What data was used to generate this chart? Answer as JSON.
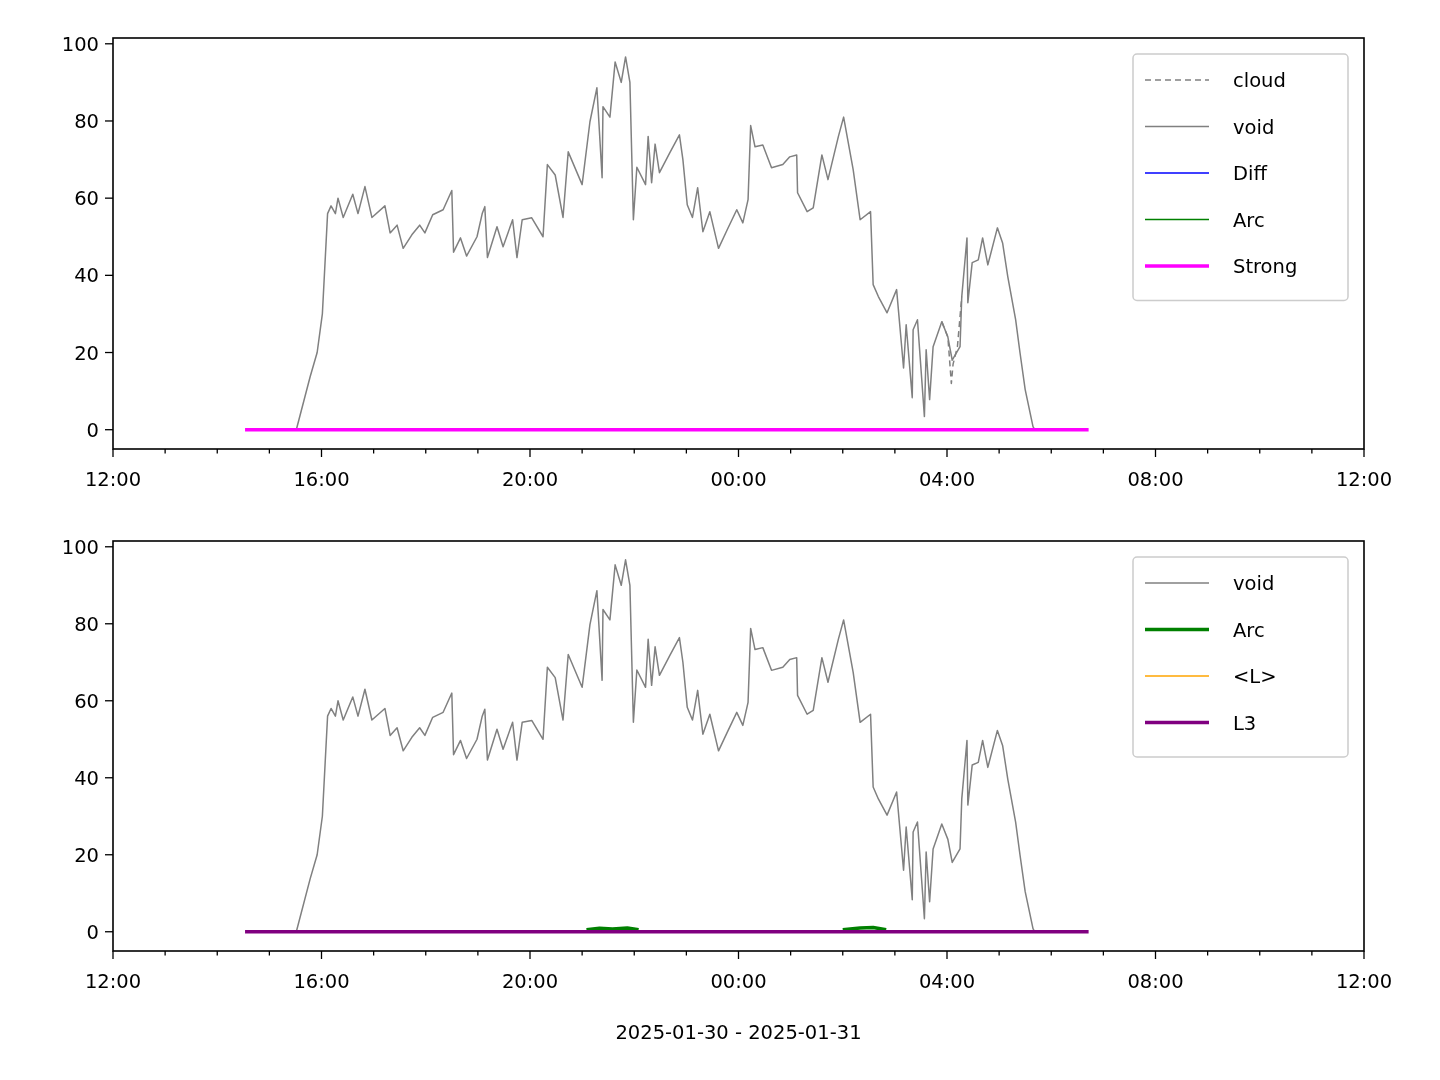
{
  "chart_data": [
    {
      "type": "line",
      "xlim": [
        "2025-01-30T12:00",
        "2025-01-31T12:00"
      ],
      "ylim": [
        -5,
        101.5
      ],
      "xticks": [
        {
          "value": "2025-01-30T12:00",
          "label": "12:00"
        },
        {
          "value": "2025-01-30T13:00",
          "label": null
        },
        {
          "value": "2025-01-30T14:00",
          "label": null
        },
        {
          "value": "2025-01-30T15:00",
          "label": null
        },
        {
          "value": "2025-01-30T16:00",
          "label": "16:00"
        },
        {
          "value": "2025-01-30T17:00",
          "label": null
        },
        {
          "value": "2025-01-30T18:00",
          "label": null
        },
        {
          "value": "2025-01-30T19:00",
          "label": null
        },
        {
          "value": "2025-01-30T20:00",
          "label": "20:00"
        },
        {
          "value": "2025-01-30T21:00",
          "label": null
        },
        {
          "value": "2025-01-30T22:00",
          "label": null
        },
        {
          "value": "2025-01-30T23:00",
          "label": null
        },
        {
          "value": "2025-01-31T00:00",
          "label": "00:00"
        },
        {
          "value": "2025-01-31T01:00",
          "label": null
        },
        {
          "value": "2025-01-31T02:00",
          "label": null
        },
        {
          "value": "2025-01-31T03:00",
          "label": null
        },
        {
          "value": "2025-01-31T04:00",
          "label": "04:00"
        },
        {
          "value": "2025-01-31T05:00",
          "label": null
        },
        {
          "value": "2025-01-31T06:00",
          "label": null
        },
        {
          "value": "2025-01-31T07:00",
          "label": null
        },
        {
          "value": "2025-01-31T08:00",
          "label": "08:00"
        },
        {
          "value": "2025-01-31T09:00",
          "label": null
        },
        {
          "value": "2025-01-31T10:00",
          "label": null
        },
        {
          "value": "2025-01-31T11:00",
          "label": null
        },
        {
          "value": "2025-01-31T12:00",
          "label": "12:00"
        }
      ],
      "yticks": [
        0,
        20,
        40,
        60,
        80,
        100
      ],
      "legend": "top right",
      "series": [
        {
          "name": "cloud",
          "color": "#808080",
          "line_style": "dashed",
          "x": [
            "2025-01-31T03:54",
            "2025-01-31T04:01",
            "2025-01-31T04:05",
            "2025-01-31T04:07",
            "2025-01-31T04:12",
            "2025-01-31T04:17"
          ],
          "values": [
            28,
            24,
            12,
            17,
            21.5,
            34.5
          ]
        },
        {
          "name": "void",
          "color": "#808080",
          "x": [
            "2025-01-30T15:31",
            "2025-01-30T15:47",
            "2025-01-30T15:55",
            "2025-01-30T16:01",
            "2025-01-30T16:07",
            "2025-01-30T16:11",
            "2025-01-30T16:16",
            "2025-01-30T16:19",
            "2025-01-30T16:25",
            "2025-01-30T16:36",
            "2025-01-30T16:42",
            "2025-01-30T16:50",
            "2025-01-30T16:58",
            "2025-01-30T17:13",
            "2025-01-30T17:19",
            "2025-01-30T17:27",
            "2025-01-30T17:34",
            "2025-01-30T17:44",
            "2025-01-30T17:53",
            "2025-01-30T17:59",
            "2025-01-30T18:08",
            "2025-01-30T18:20",
            "2025-01-30T18:30",
            "2025-01-30T18:32",
            "2025-01-30T18:40",
            "2025-01-30T18:47",
            "2025-01-30T18:59",
            "2025-01-30T19:05",
            "2025-01-30T19:08",
            "2025-01-30T19:11",
            "2025-01-30T19:22",
            "2025-01-30T19:29",
            "2025-01-30T19:40",
            "2025-01-30T19:45",
            "2025-01-30T19:51",
            "2025-01-30T20:02",
            "2025-01-30T20:15",
            "2025-01-30T20:20",
            "2025-01-30T20:29",
            "2025-01-30T20:38",
            "2025-01-30T20:44",
            "2025-01-30T21:00",
            "2025-01-30T21:09",
            "2025-01-30T21:17",
            "2025-01-30T21:23",
            "2025-01-30T21:24",
            "2025-01-30T21:32",
            "2025-01-30T21:38",
            "2025-01-30T21:45",
            "2025-01-30T21:50",
            "2025-01-30T21:55",
            "2025-01-30T21:59",
            "2025-01-30T22:03",
            "2025-01-30T22:13",
            "2025-01-30T22:16",
            "2025-01-30T22:20",
            "2025-01-30T22:24",
            "2025-01-30T22:29",
            "2025-01-30T22:41",
            "2025-01-30T22:52",
            "2025-01-30T22:56",
            "2025-01-30T23:01",
            "2025-01-30T23:07",
            "2025-01-30T23:13",
            "2025-01-30T23:19",
            "2025-01-30T23:27",
            "2025-01-30T23:37",
            "2025-01-30T23:47",
            "2025-01-30T23:58",
            "2025-01-31T00:05",
            "2025-01-31T00:11",
            "2025-01-31T00:14",
            "2025-01-31T00:19",
            "2025-01-31T00:28",
            "2025-01-31T00:38",
            "2025-01-31T00:51",
            "2025-01-31T00:59",
            "2025-01-31T01:07",
            "2025-01-31T01:08",
            "2025-01-31T01:19",
            "2025-01-31T01:26",
            "2025-01-31T01:36",
            "2025-01-31T01:43",
            "2025-01-31T01:55",
            "2025-01-31T02:01",
            "2025-01-31T02:12",
            "2025-01-31T02:20",
            "2025-01-31T02:32",
            "2025-01-31T02:35",
            "2025-01-31T02:41",
            "2025-01-31T02:51",
            "2025-01-31T03:02",
            "2025-01-31T03:10",
            "2025-01-31T03:13",
            "2025-01-31T03:20",
            "2025-01-31T03:21",
            "2025-01-31T03:26",
            "2025-01-31T03:34",
            "2025-01-31T03:36",
            "2025-01-31T03:40",
            "2025-01-31T03:44",
            "2025-01-31T03:54",
            "2025-01-31T04:01",
            "2025-01-31T04:06",
            "2025-01-31T04:15",
            "2025-01-31T04:17",
            "2025-01-31T04:23",
            "2025-01-31T04:24",
            "2025-01-31T04:29",
            "2025-01-31T04:36",
            "2025-01-31T04:41",
            "2025-01-31T04:47",
            "2025-01-31T04:58",
            "2025-01-31T05:04",
            "2025-01-31T05:10",
            "2025-01-31T05:19",
            "2025-01-31T05:24",
            "2025-01-31T05:30",
            "2025-01-31T05:39",
            "2025-01-31T05:41"
          ],
          "values": [
            0,
            13.8,
            20,
            30,
            56,
            58,
            56,
            60,
            55,
            61,
            56,
            63,
            55,
            58,
            51,
            53,
            47,
            50.5,
            53,
            51,
            55.7,
            57,
            62,
            46,
            49.7,
            45,
            50,
            56,
            57.8,
            44.6,
            52.6,
            47.4,
            54.4,
            44.6,
            54.4,
            54.9,
            50,
            68.7,
            66,
            55,
            72,
            63.5,
            79.8,
            88.6,
            65.3,
            83.7,
            81,
            95.3,
            90,
            96.6,
            90,
            54.4,
            68,
            63.5,
            76,
            64,
            74,
            66.6,
            71.8,
            76.4,
            70,
            58.3,
            55,
            62.7,
            51.3,
            56.5,
            47,
            51.8,
            57,
            53.6,
            59.6,
            78.8,
            73.3,
            73.8,
            67.9,
            68.7,
            70.7,
            71.2,
            61.4,
            56.5,
            57.5,
            71.2,
            64.8,
            76,
            81,
            67.4,
            54.4,
            56.5,
            37.6,
            34.5,
            30.3,
            36.3,
            16,
            27.2,
            8.3,
            25.9,
            28.5,
            3.4,
            20.7,
            7.8,
            21.5,
            28,
            24,
            18,
            21.5,
            34.5,
            49.7,
            32.9,
            43.3,
            44,
            49.7,
            42.7,
            52.3,
            48.4,
            39.6,
            28.5,
            20,
            10.4,
            0.8,
            0
          ]
        },
        {
          "name": "Diff",
          "color": "#0000ff"
        },
        {
          "name": "Arc",
          "color": "#008000"
        },
        {
          "name": "Strong",
          "color": "#ff00ff",
          "x": [
            "2025-01-30T14:32",
            "2025-01-31T06:43"
          ],
          "values": [
            0,
            0
          ]
        }
      ]
    },
    {
      "type": "line",
      "xlabel": "2025-01-30 - 2025-01-31",
      "xlim": [
        "2025-01-30T12:00",
        "2025-01-31T12:00"
      ],
      "ylim": [
        -5,
        101.5
      ],
      "xticks": [
        {
          "value": "2025-01-30T12:00",
          "label": "12:00"
        },
        {
          "value": "2025-01-30T13:00",
          "label": null
        },
        {
          "value": "2025-01-30T14:00",
          "label": null
        },
        {
          "value": "2025-01-30T15:00",
          "label": null
        },
        {
          "value": "2025-01-30T16:00",
          "label": "16:00"
        },
        {
          "value": "2025-01-30T17:00",
          "label": null
        },
        {
          "value": "2025-01-30T18:00",
          "label": null
        },
        {
          "value": "2025-01-30T19:00",
          "label": null
        },
        {
          "value": "2025-01-30T20:00",
          "label": "20:00"
        },
        {
          "value": "2025-01-30T21:00",
          "label": null
        },
        {
          "value": "2025-01-30T22:00",
          "label": null
        },
        {
          "value": "2025-01-30T23:00",
          "label": null
        },
        {
          "value": "2025-01-31T00:00",
          "label": "00:00"
        },
        {
          "value": "2025-01-31T01:00",
          "label": null
        },
        {
          "value": "2025-01-31T02:00",
          "label": null
        },
        {
          "value": "2025-01-31T03:00",
          "label": null
        },
        {
          "value": "2025-01-31T04:00",
          "label": "04:00"
        },
        {
          "value": "2025-01-31T05:00",
          "label": null
        },
        {
          "value": "2025-01-31T06:00",
          "label": null
        },
        {
          "value": "2025-01-31T07:00",
          "label": null
        },
        {
          "value": "2025-01-31T08:00",
          "label": "08:00"
        },
        {
          "value": "2025-01-31T09:00",
          "label": null
        },
        {
          "value": "2025-01-31T10:00",
          "label": null
        },
        {
          "value": "2025-01-31T11:00",
          "label": null
        },
        {
          "value": "2025-01-31T12:00",
          "label": "12:00"
        }
      ],
      "yticks": [
        0,
        20,
        40,
        60,
        80,
        100
      ],
      "legend": "top right",
      "series": [
        {
          "name": "void",
          "color": "#808080",
          "x": [
            "2025-01-30T15:31",
            "2025-01-30T15:47",
            "2025-01-30T15:55",
            "2025-01-30T16:01",
            "2025-01-30T16:07",
            "2025-01-30T16:11",
            "2025-01-30T16:16",
            "2025-01-30T16:19",
            "2025-01-30T16:25",
            "2025-01-30T16:36",
            "2025-01-30T16:42",
            "2025-01-30T16:50",
            "2025-01-30T16:58",
            "2025-01-30T17:13",
            "2025-01-30T17:19",
            "2025-01-30T17:27",
            "2025-01-30T17:34",
            "2025-01-30T17:44",
            "2025-01-30T17:53",
            "2025-01-30T17:59",
            "2025-01-30T18:08",
            "2025-01-30T18:20",
            "2025-01-30T18:30",
            "2025-01-30T18:32",
            "2025-01-30T18:40",
            "2025-01-30T18:47",
            "2025-01-30T18:59",
            "2025-01-30T19:05",
            "2025-01-30T19:08",
            "2025-01-30T19:11",
            "2025-01-30T19:22",
            "2025-01-30T19:29",
            "2025-01-30T19:40",
            "2025-01-30T19:45",
            "2025-01-30T19:51",
            "2025-01-30T20:02",
            "2025-01-30T20:15",
            "2025-01-30T20:20",
            "2025-01-30T20:29",
            "2025-01-30T20:38",
            "2025-01-30T20:44",
            "2025-01-30T21:00",
            "2025-01-30T21:09",
            "2025-01-30T21:17",
            "2025-01-30T21:23",
            "2025-01-30T21:24",
            "2025-01-30T21:32",
            "2025-01-30T21:38",
            "2025-01-30T21:45",
            "2025-01-30T21:50",
            "2025-01-30T21:55",
            "2025-01-30T21:59",
            "2025-01-30T22:03",
            "2025-01-30T22:13",
            "2025-01-30T22:16",
            "2025-01-30T22:20",
            "2025-01-30T22:24",
            "2025-01-30T22:29",
            "2025-01-30T22:41",
            "2025-01-30T22:52",
            "2025-01-30T22:56",
            "2025-01-30T23:01",
            "2025-01-30T23:07",
            "2025-01-30T23:13",
            "2025-01-30T23:19",
            "2025-01-30T23:27",
            "2025-01-30T23:37",
            "2025-01-30T23:47",
            "2025-01-30T23:58",
            "2025-01-31T00:05",
            "2025-01-31T00:11",
            "2025-01-31T00:14",
            "2025-01-31T00:19",
            "2025-01-31T00:28",
            "2025-01-31T00:38",
            "2025-01-31T00:51",
            "2025-01-31T00:59",
            "2025-01-31T01:07",
            "2025-01-31T01:08",
            "2025-01-31T01:19",
            "2025-01-31T01:26",
            "2025-01-31T01:36",
            "2025-01-31T01:43",
            "2025-01-31T01:55",
            "2025-01-31T02:01",
            "2025-01-31T02:12",
            "2025-01-31T02:20",
            "2025-01-31T02:32",
            "2025-01-31T02:35",
            "2025-01-31T02:41",
            "2025-01-31T02:51",
            "2025-01-31T03:02",
            "2025-01-31T03:10",
            "2025-01-31T03:13",
            "2025-01-31T03:20",
            "2025-01-31T03:21",
            "2025-01-31T03:26",
            "2025-01-31T03:34",
            "2025-01-31T03:36",
            "2025-01-31T03:40",
            "2025-01-31T03:44",
            "2025-01-31T03:54",
            "2025-01-31T04:01",
            "2025-01-31T04:06",
            "2025-01-31T04:15",
            "2025-01-31T04:17",
            "2025-01-31T04:23",
            "2025-01-31T04:24",
            "2025-01-31T04:29",
            "2025-01-31T04:36",
            "2025-01-31T04:41",
            "2025-01-31T04:47",
            "2025-01-31T04:58",
            "2025-01-31T05:04",
            "2025-01-31T05:10",
            "2025-01-31T05:19",
            "2025-01-31T05:24",
            "2025-01-31T05:30",
            "2025-01-31T05:39",
            "2025-01-31T05:41"
          ],
          "values": [
            0,
            13.8,
            20,
            30,
            56,
            58,
            56,
            60,
            55,
            61,
            56,
            63,
            55,
            58,
            51,
            53,
            47,
            50.5,
            53,
            51,
            55.7,
            57,
            62,
            46,
            49.7,
            45,
            50,
            56,
            57.8,
            44.6,
            52.6,
            47.4,
            54.4,
            44.6,
            54.4,
            54.9,
            50,
            68.7,
            66,
            55,
            72,
            63.5,
            79.8,
            88.6,
            65.3,
            83.7,
            81,
            95.3,
            90,
            96.6,
            90,
            54.4,
            68,
            63.5,
            76,
            64,
            74,
            66.6,
            71.8,
            76.4,
            70,
            58.3,
            55,
            62.7,
            51.3,
            56.5,
            47,
            51.8,
            57,
            53.6,
            59.6,
            78.8,
            73.3,
            73.8,
            67.9,
            68.7,
            70.7,
            71.2,
            61.4,
            56.5,
            57.5,
            71.2,
            64.8,
            76,
            81,
            67.4,
            54.4,
            56.5,
            37.6,
            34.5,
            30.3,
            36.3,
            16,
            27.2,
            8.3,
            25.9,
            28.5,
            3.4,
            20.7,
            7.8,
            21.5,
            28,
            24,
            18,
            21.5,
            34.5,
            49.7,
            32.9,
            43.3,
            44,
            49.7,
            42.7,
            52.3,
            48.4,
            39.6,
            28.5,
            20,
            10.4,
            0.8,
            0
          ]
        },
        {
          "name": "Arc",
          "color": "#008000",
          "x": [
            "2025-01-30T21:05",
            "2025-01-30T21:20",
            "2025-01-30T21:35",
            "2025-01-30T21:52",
            "2025-01-30T22:05",
            "2025-01-30T23:00",
            "2025-01-31T02:00",
            "2025-01-31T02:20",
            "2025-01-31T02:35",
            "2025-01-31T02:50"
          ],
          "values": [
            0.5,
            0.9,
            0.7,
            1,
            0.5,
            null,
            0.5,
            1,
            1.1,
            0.5
          ]
        },
        {
          "name": "<L>",
          "color": "#ffa500"
        },
        {
          "name": "L3",
          "color": "#800080",
          "x": [
            "2025-01-30T14:32",
            "2025-01-31T06:43"
          ],
          "values": [
            0,
            0
          ]
        }
      ]
    }
  ]
}
